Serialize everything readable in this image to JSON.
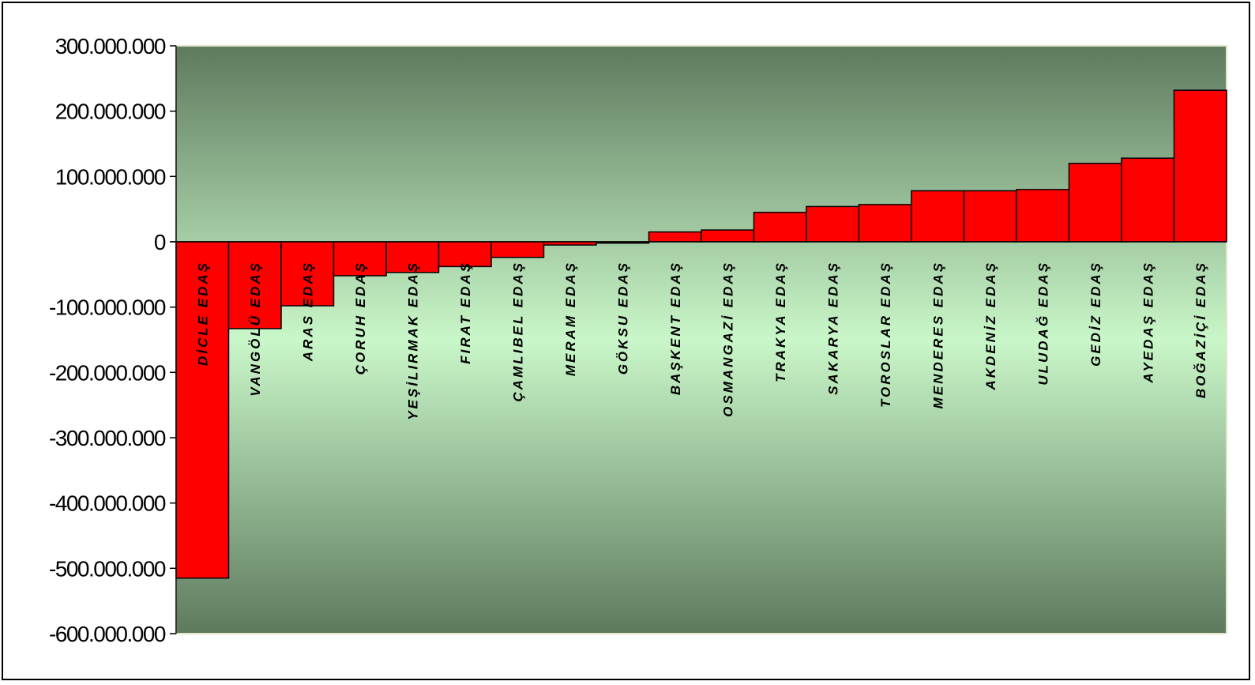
{
  "chart_data": {
    "type": "bar",
    "title": "",
    "xlabel": "",
    "ylabel": "",
    "ylim": [
      -600000000,
      300000000
    ],
    "yticks": [
      300000000,
      200000000,
      100000000,
      0,
      -100000000,
      -200000000,
      -300000000,
      -400000000,
      -500000000,
      -600000000
    ],
    "ytick_labels": [
      "300.000.000",
      "200.000.000",
      "100.000.000",
      "0",
      "-100.000.000",
      "-200.000.000",
      "-300.000.000",
      "-400.000.000",
      "-500.000.000",
      "-600.000.000"
    ],
    "categories": [
      "DİCLE  EDAŞ",
      "VANGÖLÜ EDAŞ",
      "ARAS EDAŞ",
      "ÇORUH EDAŞ",
      "YEŞİLIRMAK EDAŞ",
      "FIRAT EDAŞ",
      "ÇAMLIBEL EDAŞ",
      "MERAM EDAŞ",
      "GÖKSU EDAŞ",
      "BAŞKENT EDAŞ",
      "OSMANGAZİ EDAŞ",
      "TRAKYA EDAŞ",
      "SAKARYA EDAŞ",
      "TOROSLAR EDAŞ",
      "MENDERES EDAŞ",
      "AKDENİZ EDAŞ",
      "ULUDAĞ EDAŞ",
      "GEDİZ EDAŞ",
      "AYEDAŞ EDAŞ",
      "BOĞAZİÇİ EDAŞ"
    ],
    "values": [
      -515000000,
      -133000000,
      -98000000,
      -52000000,
      -47000000,
      -38000000,
      -24000000,
      -5000000,
      -2000000,
      15000000,
      18000000,
      45000000,
      54000000,
      57000000,
      78000000,
      78000000,
      80000000,
      120000000,
      128000000,
      232000000
    ],
    "bar_color": "#ff0000",
    "plot_background": "gradient dark green to light green",
    "grid": false,
    "legend": "none"
  }
}
